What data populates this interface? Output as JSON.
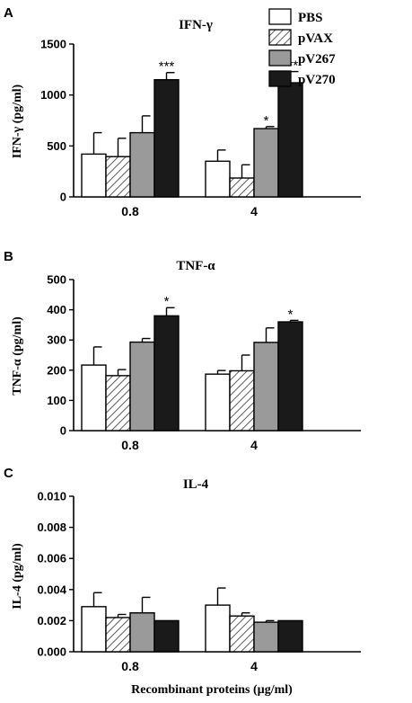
{
  "colors": {
    "PBS": "#ffffff",
    "pVAX": "hatched",
    "pV267": "#9a9a9a",
    "pV270": "#1a1a1a"
  },
  "legend": [
    "PBS",
    "pVAX",
    "pV267",
    "pV270"
  ],
  "xlabel": "Recombinant proteins (µg/ml)",
  "chart_data": [
    {
      "type": "bar",
      "panel": "A",
      "title": "IFN-γ",
      "ylabel": "IFN-γ  (pg/ml)",
      "categories": [
        "0.8",
        "4"
      ],
      "ylim": [
        0,
        1500
      ],
      "yticks": [
        "0",
        "500",
        "1000",
        "1500"
      ],
      "series": [
        {
          "name": "PBS",
          "values": [
            420,
            350
          ],
          "errors": [
            210,
            110
          ]
        },
        {
          "name": "pVAX",
          "values": [
            395,
            185
          ],
          "errors": [
            180,
            130
          ]
        },
        {
          "name": "pV267",
          "values": [
            630,
            670
          ],
          "errors": [
            165,
            20
          ]
        },
        {
          "name": "pV270",
          "values": [
            1150,
            1120
          ],
          "errors": [
            70,
            110
          ]
        }
      ],
      "significance": [
        [
          "",
          ""
        ],
        [
          "",
          ""
        ],
        [
          "",
          "*"
        ],
        [
          "***",
          "***"
        ]
      ]
    },
    {
      "type": "bar",
      "panel": "B",
      "title": "TNF-α",
      "ylabel": "TNF-α  (pg/ml)",
      "categories": [
        "0.8",
        "4"
      ],
      "ylim": [
        0,
        500
      ],
      "yticks": [
        "0",
        "100",
        "200",
        "300",
        "400",
        "500"
      ],
      "series": [
        {
          "name": "PBS",
          "values": [
            217,
            187
          ],
          "errors": [
            60,
            12
          ]
        },
        {
          "name": "pVAX",
          "values": [
            182,
            198
          ],
          "errors": [
            20,
            52
          ]
        },
        {
          "name": "pV267",
          "values": [
            293,
            292
          ],
          "errors": [
            12,
            48
          ]
        },
        {
          "name": "pV270",
          "values": [
            380,
            360
          ],
          "errors": [
            27,
            5
          ]
        }
      ],
      "significance": [
        [
          "",
          ""
        ],
        [
          "",
          ""
        ],
        [
          "",
          ""
        ],
        [
          "*",
          "*"
        ]
      ]
    },
    {
      "type": "bar",
      "panel": "C",
      "title": "IL-4",
      "ylabel": "IL-4 (pg/ml)",
      "categories": [
        "0.8",
        "4"
      ],
      "ylim": [
        0,
        0.01
      ],
      "yticks": [
        "0.000",
        "0.002",
        "0.004",
        "0.006",
        "0.008",
        "0.010"
      ],
      "series": [
        {
          "name": "PBS",
          "values": [
            0.0029,
            0.003
          ],
          "errors": [
            0.0009,
            0.0011
          ]
        },
        {
          "name": "pVAX",
          "values": [
            0.0022,
            0.0023
          ],
          "errors": [
            0.0002,
            0.0002
          ]
        },
        {
          "name": "pV267",
          "values": [
            0.0025,
            0.0019
          ],
          "errors": [
            0.001,
            0.0001
          ]
        },
        {
          "name": "pV270",
          "values": [
            0.002,
            0.002
          ],
          "errors": [
            0.0,
            0.0
          ]
        }
      ],
      "significance": [
        [
          "",
          ""
        ],
        [
          "",
          ""
        ],
        [
          "",
          ""
        ],
        [
          "",
          ""
        ]
      ]
    }
  ]
}
